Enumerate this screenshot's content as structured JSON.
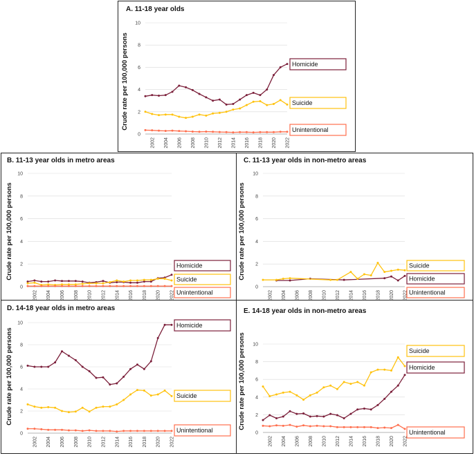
{
  "colors": {
    "homicide": "#7b1f3a",
    "suicide": "#ffc20e",
    "unintentional": "#ff6f4e",
    "gridline": "#d9d9d9",
    "frame": "#222222"
  },
  "x_ticks": [
    "2002",
    "2004",
    "2006",
    "2008",
    "2010",
    "2012",
    "2014",
    "2016",
    "2018",
    "2020",
    "2022"
  ],
  "series_labels": {
    "homicide": "Homicide",
    "suicide": "Suicide",
    "unintentional": "Unintentional"
  },
  "chart_data": [
    {
      "type": "line",
      "title": "A. 11-18 year olds",
      "ylabel": "Crude rate per 100,000 persons",
      "xlabel": "",
      "ylim": [
        0,
        10
      ],
      "yticks": [
        "0",
        "2",
        "4",
        "6",
        "8",
        "10"
      ],
      "x": [
        2001,
        2002,
        2003,
        2004,
        2005,
        2006,
        2007,
        2008,
        2009,
        2010,
        2011,
        2012,
        2013,
        2014,
        2015,
        2016,
        2017,
        2018,
        2019,
        2020,
        2021,
        2022
      ],
      "series": [
        {
          "name": "Homicide",
          "key": "homicide",
          "values": [
            3.4,
            3.5,
            3.45,
            3.5,
            3.8,
            4.35,
            4.2,
            3.95,
            3.6,
            3.3,
            3.0,
            3.1,
            2.65,
            2.7,
            3.1,
            3.5,
            3.7,
            3.5,
            4.0,
            5.3,
            6.0,
            6.3
          ]
        },
        {
          "name": "Suicide",
          "key": "suicide",
          "values": [
            2.0,
            1.8,
            1.7,
            1.75,
            1.75,
            1.55,
            1.45,
            1.55,
            1.75,
            1.65,
            1.85,
            1.9,
            2.0,
            2.2,
            2.3,
            2.6,
            2.9,
            2.95,
            2.6,
            2.7,
            3.05,
            2.65
          ]
        },
        {
          "name": "Unintentional",
          "key": "unintentional",
          "values": [
            0.35,
            0.33,
            0.3,
            0.28,
            0.3,
            0.27,
            0.25,
            0.22,
            0.2,
            0.22,
            0.2,
            0.18,
            0.17,
            0.15,
            0.17,
            0.17,
            0.15,
            0.17,
            0.17,
            0.17,
            0.2,
            0.2
          ]
        }
      ]
    },
    {
      "type": "line",
      "title": "B. 11-13 year olds in metro areas",
      "ylabel": "Crude rate per 100,000 persons",
      "xlabel": "",
      "ylim": [
        0,
        10
      ],
      "yticks": [
        "0",
        "2",
        "4",
        "6",
        "8",
        "10"
      ],
      "x": [
        2001,
        2002,
        2003,
        2004,
        2005,
        2006,
        2007,
        2008,
        2009,
        2010,
        2011,
        2012,
        2013,
        2014,
        2015,
        2016,
        2017,
        2018,
        2019,
        2020,
        2021,
        2022
      ],
      "series": [
        {
          "name": "Homicide",
          "key": "homicide",
          "values": [
            0.45,
            0.55,
            0.45,
            0.45,
            0.55,
            0.5,
            0.5,
            0.5,
            0.45,
            0.35,
            0.4,
            0.5,
            0.35,
            0.4,
            0.4,
            0.35,
            0.35,
            0.45,
            0.45,
            0.75,
            0.8,
            1.05
          ]
        },
        {
          "name": "Suicide",
          "key": "suicide",
          "values": [
            0.3,
            0.35,
            0.15,
            0.2,
            0.15,
            0.2,
            0.2,
            0.2,
            0.25,
            0.3,
            0.3,
            0.3,
            0.4,
            0.55,
            0.45,
            0.55,
            0.55,
            0.6,
            0.6,
            0.7,
            0.7,
            0.55
          ]
        },
        {
          "name": "Unintentional",
          "key": "unintentional",
          "values": [
            0.05,
            0.05,
            0.05,
            0.05,
            0.05,
            0.05,
            0.05,
            0.05,
            0.05,
            0.05,
            0.05,
            0.05,
            0.05,
            0.05,
            0.05,
            0.05,
            0.05,
            0.05,
            0.05,
            0.05,
            0.05,
            0.05
          ]
        }
      ]
    },
    {
      "type": "line",
      "title": "C. 11-13 year olds in non-metro areas",
      "ylabel": "Crude rate per 100,000 persons",
      "xlabel": "",
      "ylim": [
        0,
        10
      ],
      "yticks": [
        "0",
        "2",
        "4",
        "6",
        "8",
        "10"
      ],
      "x": [
        2001,
        2002,
        2003,
        2004,
        2005,
        2006,
        2007,
        2008,
        2009,
        2010,
        2011,
        2012,
        2013,
        2014,
        2015,
        2016,
        2017,
        2018,
        2019,
        2020,
        2021,
        2022
      ],
      "series": [
        {
          "name": "Homicide",
          "key": "homicide",
          "x": [
            2003,
            2005,
            2008,
            2013,
            2019,
            2020,
            2021,
            2022
          ],
          "values": [
            0.55,
            0.55,
            0.7,
            0.6,
            0.75,
            0.9,
            0.55,
            0.95
          ]
        },
        {
          "name": "Suicide",
          "key": "suicide",
          "x": [
            2001,
            2003,
            2004,
            2005,
            2011,
            2012,
            2014,
            2015,
            2016,
            2017,
            2018,
            2019,
            2020,
            2021,
            2022
          ],
          "values": [
            0.6,
            0.6,
            0.7,
            0.75,
            0.6,
            0.6,
            1.3,
            0.7,
            1.1,
            1.0,
            2.1,
            1.3,
            1.4,
            1.5,
            1.45
          ]
        }
      ]
    },
    {
      "type": "line",
      "title": "D. 14-18 year olds in metro areas",
      "ylabel": "Crude rate per 100,000 persons",
      "xlabel": "",
      "ylim": [
        0,
        10
      ],
      "yticks": [
        "0",
        "2",
        "4",
        "6",
        "8",
        "10"
      ],
      "x": [
        2001,
        2002,
        2003,
        2004,
        2005,
        2006,
        2007,
        2008,
        2009,
        2010,
        2011,
        2012,
        2013,
        2014,
        2015,
        2016,
        2017,
        2018,
        2019,
        2020,
        2021,
        2022
      ],
      "series": [
        {
          "name": "Homicide",
          "key": "homicide",
          "values": [
            6.1,
            6.0,
            6.0,
            6.0,
            6.4,
            7.4,
            7.0,
            6.6,
            6.0,
            5.6,
            5.0,
            5.05,
            4.4,
            4.5,
            5.1,
            5.8,
            6.2,
            5.8,
            6.5,
            8.6,
            9.8,
            9.8
          ]
        },
        {
          "name": "Suicide",
          "key": "suicide",
          "values": [
            2.6,
            2.4,
            2.3,
            2.35,
            2.3,
            2.0,
            1.9,
            1.95,
            2.3,
            1.95,
            2.3,
            2.4,
            2.4,
            2.6,
            3.0,
            3.5,
            3.9,
            3.85,
            3.4,
            3.5,
            3.85,
            3.35
          ]
        },
        {
          "name": "Unintentional",
          "key": "unintentional",
          "values": [
            0.4,
            0.4,
            0.35,
            0.3,
            0.3,
            0.3,
            0.25,
            0.25,
            0.2,
            0.25,
            0.2,
            0.2,
            0.2,
            0.15,
            0.2,
            0.2,
            0.2,
            0.2,
            0.2,
            0.2,
            0.2,
            0.2
          ]
        }
      ]
    },
    {
      "type": "line",
      "title": "E. 14-18 year olds in non-metro areas",
      "ylabel": "Crude rate per 100,000 persons",
      "xlabel": "",
      "ylim": [
        0,
        10
      ],
      "yticks": [
        "0",
        "2",
        "4",
        "6",
        "8",
        "10"
      ],
      "x": [
        2001,
        2002,
        2003,
        2004,
        2005,
        2006,
        2007,
        2008,
        2009,
        2010,
        2011,
        2012,
        2013,
        2014,
        2015,
        2016,
        2017,
        2018,
        2019,
        2020,
        2021,
        2022
      ],
      "series": [
        {
          "name": "Suicide",
          "key": "suicide",
          "values": [
            5.2,
            4.1,
            4.3,
            4.5,
            4.6,
            4.2,
            3.7,
            4.2,
            4.5,
            5.1,
            5.3,
            4.9,
            5.7,
            5.5,
            5.7,
            5.3,
            6.8,
            7.1,
            7.1,
            7.0,
            8.5,
            7.5
          ]
        },
        {
          "name": "Homicide",
          "key": "homicide",
          "values": [
            1.4,
            1.95,
            1.6,
            1.8,
            2.4,
            2.1,
            2.15,
            1.8,
            1.85,
            1.8,
            2.1,
            1.95,
            1.6,
            2.1,
            2.6,
            2.7,
            2.6,
            3.1,
            3.8,
            4.6,
            5.3,
            6.5
          ]
        },
        {
          "name": "Unintentional",
          "key": "unintentional",
          "values": [
            0.75,
            0.7,
            0.8,
            0.75,
            0.85,
            0.65,
            0.8,
            0.7,
            0.75,
            0.7,
            0.7,
            0.6,
            0.6,
            0.6,
            0.6,
            0.6,
            0.6,
            0.5,
            0.55,
            0.5,
            0.85,
            0.4
          ]
        }
      ]
    }
  ]
}
